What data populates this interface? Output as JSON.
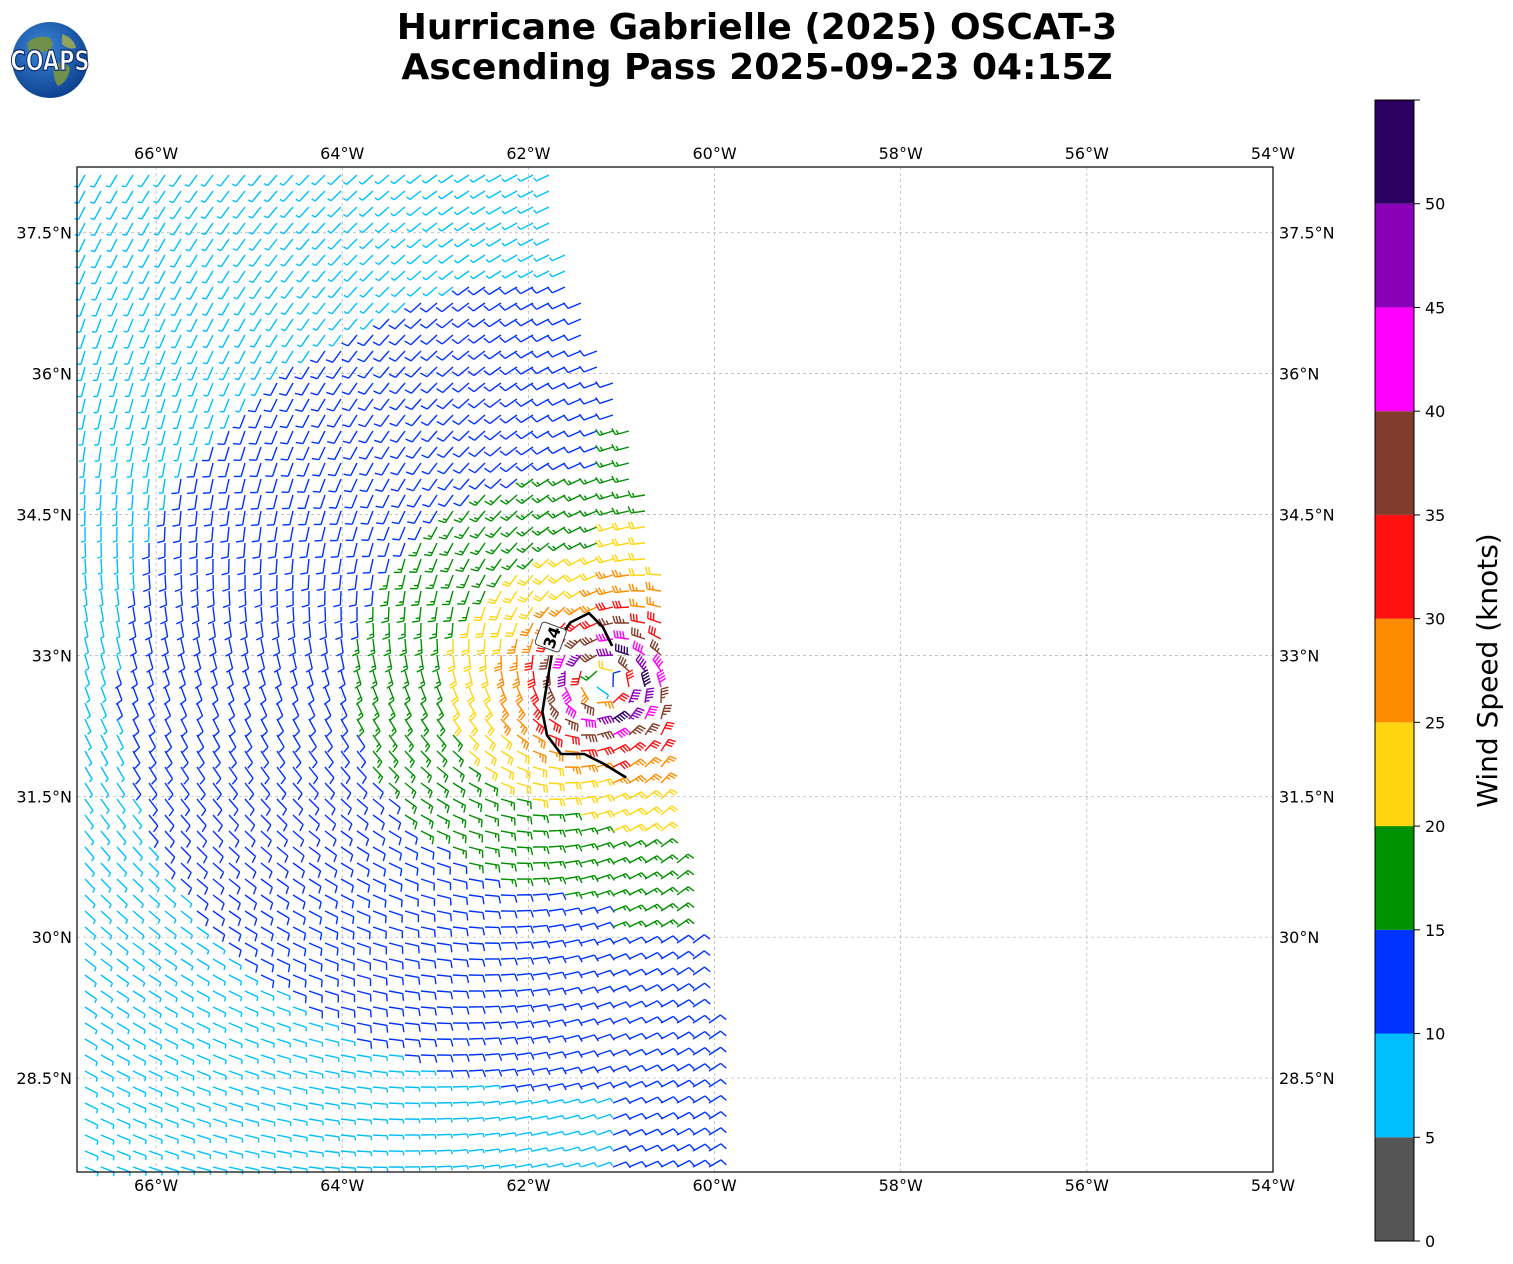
{
  "header": {
    "title_line1": "Hurricane Gabrielle (2025) OSCAT-3",
    "title_line2": "Ascending Pass 2025-09-23 04:15Z",
    "logo_text": "COAPS"
  },
  "map": {
    "lon_range": [
      -66.85,
      -54.0
    ],
    "lat_range": [
      27.5,
      38.2
    ],
    "lon_ticks": [
      {
        "value": -66,
        "label": "66°W"
      },
      {
        "value": -64,
        "label": "64°W"
      },
      {
        "value": -62,
        "label": "62°W"
      },
      {
        "value": -60,
        "label": "60°W"
      },
      {
        "value": -58,
        "label": "58°W"
      },
      {
        "value": -56,
        "label": "56°W"
      },
      {
        "value": -54,
        "label": "54°W"
      }
    ],
    "lat_ticks": [
      {
        "value": 37.5,
        "label": "37.5°N"
      },
      {
        "value": 36,
        "label": "36°N"
      },
      {
        "value": 34.5,
        "label": "34.5°N"
      },
      {
        "value": 33,
        "label": "33°N"
      },
      {
        "value": 31.5,
        "label": "31.5°N"
      },
      {
        "value": 30,
        "label": "30°N"
      },
      {
        "value": 28.5,
        "label": "28.5°N"
      }
    ],
    "gridlines": "dashed",
    "storm_center": {
      "lon": -61.2,
      "lat": 32.7
    },
    "contour_label": "34",
    "contour_34kt": [
      [
        -61.75,
        33.0
      ],
      [
        -61.8,
        32.7
      ],
      [
        -61.85,
        32.4
      ],
      [
        -61.8,
        32.15
      ],
      [
        -61.65,
        31.95
      ],
      [
        -61.4,
        31.95
      ],
      [
        -61.2,
        31.85
      ],
      [
        -60.95,
        31.7
      ]
    ],
    "contour_34kt_upper": [
      [
        -61.75,
        33.05
      ],
      [
        -61.55,
        33.35
      ],
      [
        -61.35,
        33.45
      ],
      [
        -61.2,
        33.3
      ],
      [
        -61.1,
        33.1
      ]
    ],
    "swath_left_edge_lon": -66.85,
    "swath_right_edge": [
      [
        -61.75,
        37.8
      ],
      [
        -61.45,
        36.8
      ],
      [
        -61.0,
        35.8
      ],
      [
        -60.75,
        34.8
      ],
      [
        -60.55,
        33.8
      ],
      [
        -60.45,
        32.8
      ],
      [
        -60.5,
        31.8
      ],
      [
        -60.4,
        30.8
      ],
      [
        -60.2,
        29.8
      ],
      [
        -60.0,
        28.8
      ],
      [
        -59.95,
        27.5
      ]
    ]
  },
  "colorbar": {
    "title": "Wind Speed (knots)",
    "bins": [
      {
        "min": 0,
        "max": 5,
        "color": "#555555"
      },
      {
        "min": 5,
        "max": 10,
        "color": "#00bfff"
      },
      {
        "min": 10,
        "max": 15,
        "color": "#0033ff"
      },
      {
        "min": 15,
        "max": 20,
        "color": "#009100"
      },
      {
        "min": 20,
        "max": 25,
        "color": "#ffd510"
      },
      {
        "min": 25,
        "max": 30,
        "color": "#ff8c00"
      },
      {
        "min": 30,
        "max": 35,
        "color": "#ff1010"
      },
      {
        "min": 35,
        "max": 40,
        "color": "#813d2b"
      },
      {
        "min": 40,
        "max": 45,
        "color": "#ff00ff"
      },
      {
        "min": 45,
        "max": 50,
        "color": "#8a00b8"
      },
      {
        "min": 50,
        "max": 55,
        "color": "#2a0060"
      }
    ],
    "tick_labels": [
      "0",
      "5",
      "10",
      "15",
      "20",
      "25",
      "30",
      "35",
      "40",
      "45",
      "50"
    ]
  }
}
